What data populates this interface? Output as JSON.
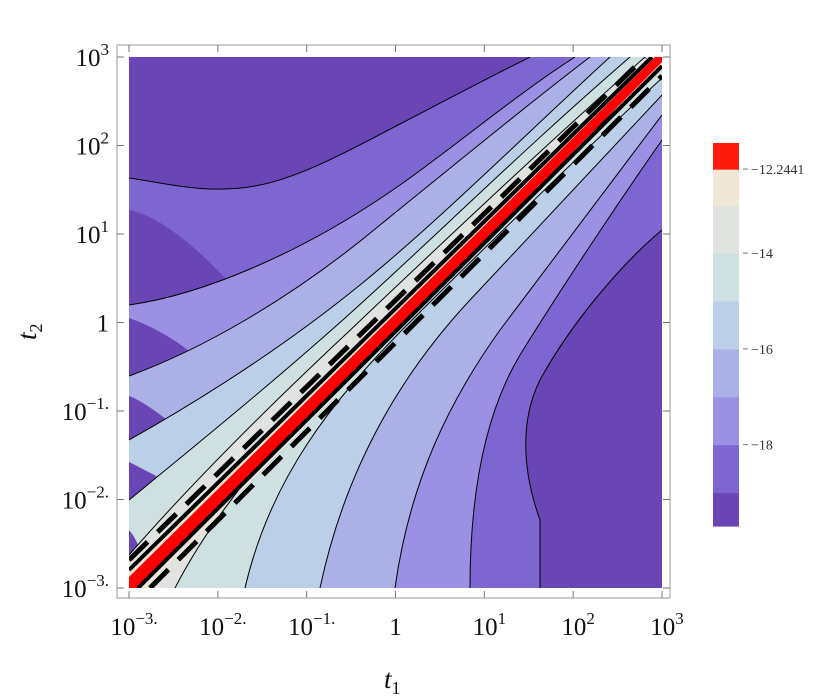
{
  "chart_data": {
    "type": "contour",
    "x_axis": {
      "label": "t",
      "label_subscript": "1",
      "scale": "log",
      "range": [
        0.001,
        1000
      ],
      "ticks": [
        {
          "value": 0.001,
          "base": "10",
          "exp": "−3."
        },
        {
          "value": 0.01,
          "base": "10",
          "exp": "−2."
        },
        {
          "value": 0.1,
          "base": "10",
          "exp": "−1."
        },
        {
          "value": 1,
          "base": "1",
          "exp": ""
        },
        {
          "value": 10,
          "base": "10",
          "exp": "1"
        },
        {
          "value": 100,
          "base": "10",
          "exp": "2"
        },
        {
          "value": 1000,
          "base": "10",
          "exp": "3"
        }
      ]
    },
    "y_axis": {
      "label": "t",
      "label_subscript": "2",
      "scale": "log",
      "range": [
        0.001,
        1000
      ],
      "ticks": [
        {
          "value": 0.001,
          "base": "10",
          "exp": "−3."
        },
        {
          "value": 0.01,
          "base": "10",
          "exp": "−2."
        },
        {
          "value": 0.1,
          "base": "10",
          "exp": "−1."
        },
        {
          "value": 1,
          "base": "1",
          "exp": ""
        },
        {
          "value": 10,
          "base": "10",
          "exp": "1"
        },
        {
          "value": 100,
          "base": "10",
          "exp": "2"
        },
        {
          "value": 1000,
          "base": "10",
          "exp": "3"
        }
      ]
    },
    "colorbar": {
      "levels": [
        {
          "from": -19.7,
          "to": -19.0,
          "color": "#6a45b5"
        },
        {
          "from": -19.0,
          "to": -18.0,
          "color": "#7e66d2"
        },
        {
          "from": -18.0,
          "to": -17.0,
          "color": "#9c90e4"
        },
        {
          "from": -17.0,
          "to": -16.0,
          "color": "#abb0e6"
        },
        {
          "from": -16.0,
          "to": -15.0,
          "color": "#bccfe8"
        },
        {
          "from": -15.0,
          "to": -14.0,
          "color": "#cfe0e2"
        },
        {
          "from": -14.0,
          "to": -13.0,
          "color": "#e0e3e0"
        },
        {
          "from": -13.0,
          "to": -12.2441,
          "color": "#f0e7d7"
        },
        {
          "from": -12.2441,
          "to": -11.7,
          "color": "#ff1b0d"
        }
      ],
      "tick_labels": [
        {
          "value": -12.2441,
          "label": "−12.2441"
        },
        {
          "value": -14,
          "label": "−14"
        },
        {
          "value": -16,
          "label": "−16"
        },
        {
          "value": -18,
          "label": "−18"
        }
      ]
    },
    "diagonal_color": "#ff0000",
    "contour_line_color": "#000000",
    "grid": false,
    "legend": "colorbar right"
  }
}
